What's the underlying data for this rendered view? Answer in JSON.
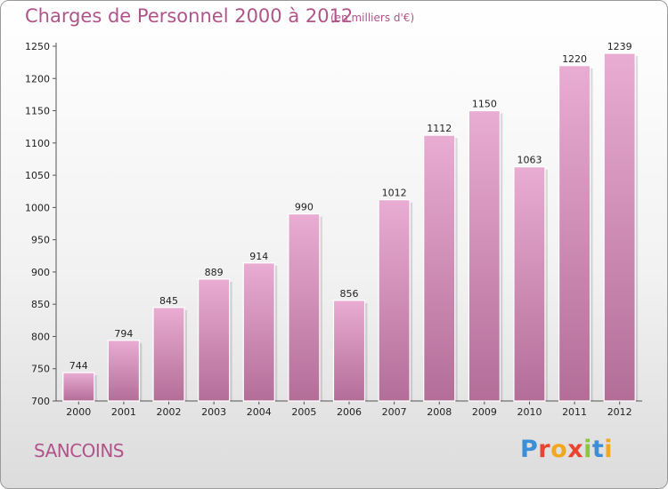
{
  "header": {
    "title": "Charges de Personnel 2000 à 2012",
    "subtitle": "(en milliers d'€)"
  },
  "footer": {
    "commune": "SANCOINS",
    "logo_text": "Proxiti"
  },
  "colors": {
    "title": "#b0548a",
    "bar_top": "#e9acd2",
    "bar_bottom": "#b36e98",
    "logo_letters": [
      "#3b8fd6",
      "#e8442f",
      "#f2a81d",
      "#e8442f",
      "#8cc63f",
      "#3b8fd6",
      "#f2a81d"
    ]
  },
  "chart_data": {
    "type": "bar",
    "title": "Charges de Personnel 2000 à 2012",
    "subtitle": "(en milliers d'€)",
    "categories": [
      "2000",
      "2001",
      "2002",
      "2003",
      "2004",
      "2005",
      "2006",
      "2007",
      "2008",
      "2009",
      "2010",
      "2011",
      "2012"
    ],
    "values": [
      744,
      794,
      845,
      889,
      914,
      990,
      856,
      1012,
      1112,
      1150,
      1063,
      1220,
      1239
    ],
    "ylim": [
      700,
      1250
    ],
    "yticks": [
      700,
      750,
      800,
      850,
      900,
      950,
      1000,
      1050,
      1100,
      1150,
      1200,
      1250
    ],
    "grid": false,
    "data_labels": true
  }
}
